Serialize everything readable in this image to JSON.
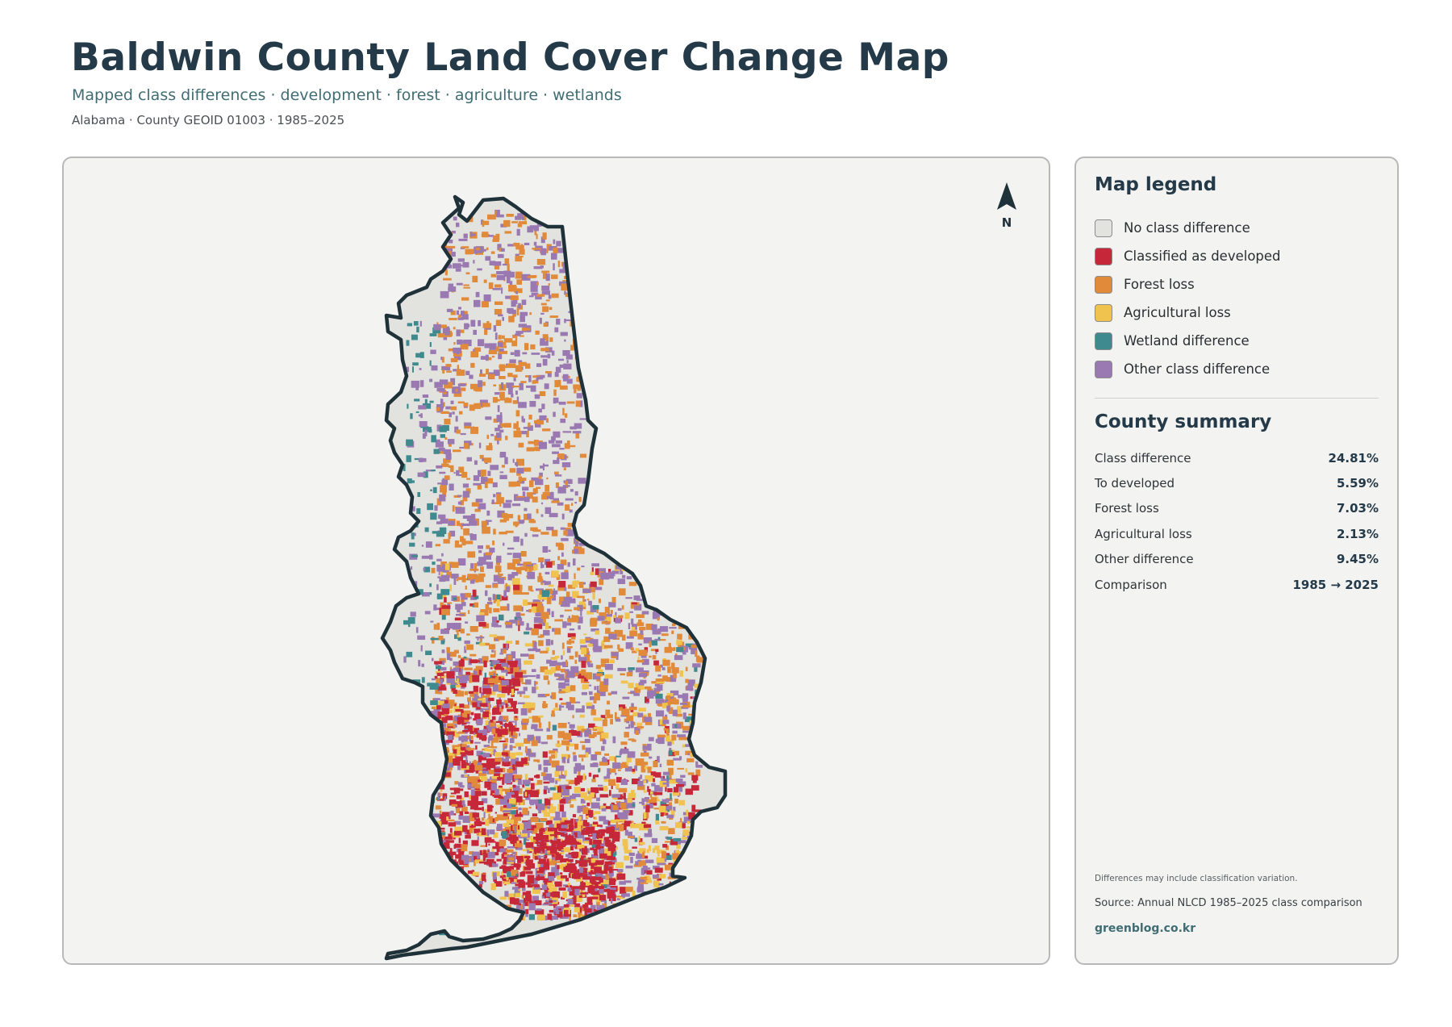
{
  "header": {
    "title": "Baldwin County Land Cover Change Map",
    "subtitle": "Mapped class differences · development · forest · agriculture · wetlands",
    "meta": "Alabama · County GEOID 01003 · 1985–2025"
  },
  "map": {
    "north_label": "N",
    "colors": {
      "outline": "#1f3139",
      "no_change": "#e2e2de",
      "developed": "#c6283a",
      "forest_loss": "#e08a3a",
      "agricultural_loss": "#f0c24e",
      "wetland": "#3e8a8e",
      "other": "#9a79b2"
    }
  },
  "legend": {
    "heading": "Map legend",
    "items": [
      {
        "label": "No class difference",
        "color": "#e2e2de"
      },
      {
        "label": "Classified as developed",
        "color": "#c6283a"
      },
      {
        "label": "Forest loss",
        "color": "#e08a3a"
      },
      {
        "label": "Agricultural loss",
        "color": "#f0c24e"
      },
      {
        "label": "Wetland difference",
        "color": "#3e8a8e"
      },
      {
        "label": "Other class difference",
        "color": "#9a79b2"
      }
    ]
  },
  "summary": {
    "heading": "County summary",
    "rows": [
      {
        "label": "Class difference",
        "value": "24.81%"
      },
      {
        "label": "To developed",
        "value": "5.59%"
      },
      {
        "label": "Forest loss",
        "value": "7.03%"
      },
      {
        "label": "Agricultural loss",
        "value": "2.13%"
      },
      {
        "label": "Other difference",
        "value": "9.45%"
      },
      {
        "label": "Comparison",
        "value": "1985 → 2025"
      }
    ]
  },
  "footer": {
    "note": "Differences may include classification variation.",
    "source": "Source: Annual NLCD 1985–2025 class comparison",
    "brand": "greenblog.co.kr"
  }
}
